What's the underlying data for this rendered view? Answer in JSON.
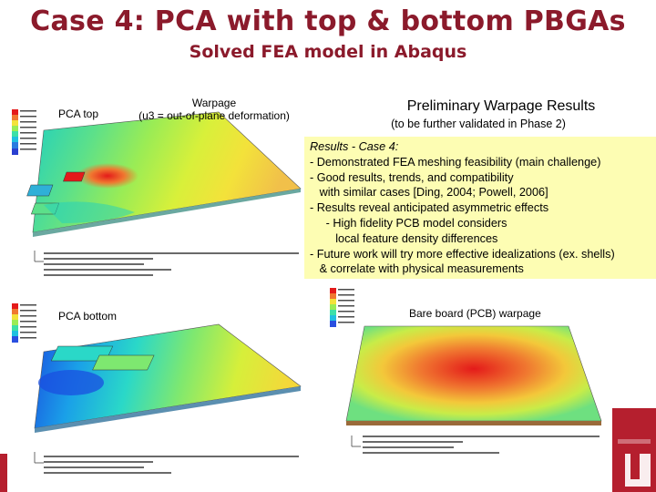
{
  "slide": {
    "title": "Case 4: PCA with top & bottom PBGAs",
    "subtitle": "Solved FEA model in Abaqus"
  },
  "labels": {
    "pca_top": "PCA top",
    "pca_bottom": "PCA bottom",
    "warpage_line1": "Warpage",
    "warpage_line2": "(u3 = out-of-plane deformation)",
    "bare_board": "Bare board (PCB) warpage"
  },
  "prelim": {
    "title": "Preliminary Warpage Results",
    "subtitle": "(to be further validated in Phase 2)"
  },
  "results": {
    "heading": "Results - Case 4:",
    "lines": [
      "- Demonstrated FEA meshing feasibility (main challenge)",
      "- Good results, trends, and compatibility",
      "   with similar cases [Ding, 2004; Powell, 2006]",
      "- Results reveal anticipated asymmetric effects",
      "     - High fidelity PCB model considers",
      "        local feature density differences",
      "- Future work will try more effective idealizations (ex. shells)",
      "   & correlate with physical measurements"
    ]
  },
  "colors": {
    "title": "#8b1a2b",
    "results_bg": "#fdfdb3",
    "brand_red": "#b51f2e"
  },
  "icons": {
    "brand_logo": "university-logo-icon"
  }
}
